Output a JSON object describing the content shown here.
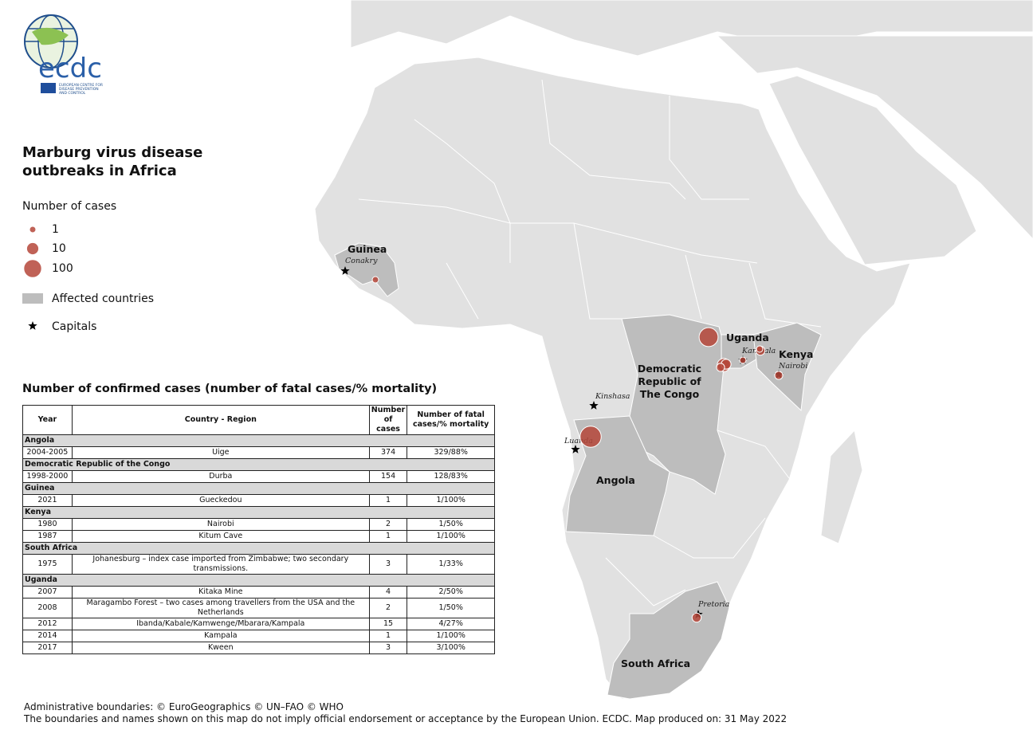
{
  "logo": {
    "text": "ecdc",
    "agency": [
      "EUROPEAN CENTRE FOR",
      "DISEASE PREVENTION",
      "AND CONTROL"
    ]
  },
  "title": [
    "Marburg virus disease",
    "outbreaks in Africa"
  ],
  "legend": {
    "title": "Number of cases",
    "sizes": [
      1,
      10,
      100
    ],
    "affected": "Affected countries",
    "capitals": "Capitals"
  },
  "countries": [
    "Guinea",
    "Uganda",
    "Kenya",
    "Democratic Republic of The Congo",
    "Angola",
    "South Africa"
  ],
  "capitals": [
    "Conakry",
    "Kampala",
    "Nairobi",
    "Kinshasa",
    "Luanda",
    "Pretoria"
  ],
  "table": {
    "title": "Number of confirmed cases (number of fatal cases/% mortality)",
    "headers": [
      "Year",
      "Country - Region",
      "Number of cases",
      "Number of fatal cases/% mortality"
    ],
    "groups": [
      {
        "country": "Angola",
        "rows": [
          {
            "year": "2004-2005",
            "region": "Uige",
            "cases": 374,
            "fatal": "329/88%"
          }
        ]
      },
      {
        "country": "Democratic Republic of the Congo",
        "rows": [
          {
            "year": "1998-2000",
            "region": "Durba",
            "cases": 154,
            "fatal": "128/83%"
          }
        ]
      },
      {
        "country": "Guinea",
        "rows": [
          {
            "year": "2021",
            "region": "Gueckedou",
            "cases": 1,
            "fatal": "1/100%"
          }
        ]
      },
      {
        "country": "Kenya",
        "rows": [
          {
            "year": "1980",
            "region": "Nairobi",
            "cases": 2,
            "fatal": "1/50%"
          },
          {
            "year": "1987",
            "region": "Kitum Cave",
            "cases": 1,
            "fatal": "1/100%"
          }
        ]
      },
      {
        "country": "South Africa",
        "rows": [
          {
            "year": "1975",
            "region": "Johanesburg – index case imported from Zimbabwe; two secondary transmissions.",
            "cases": 3,
            "fatal": "1/33%"
          }
        ]
      },
      {
        "country": "Uganda",
        "rows": [
          {
            "year": "2007",
            "region": "Kitaka Mine",
            "cases": 4,
            "fatal": "2/50%"
          },
          {
            "year": "2008",
            "region": "Maragambo Forest – two cases among travellers from the USA and the Netherlands",
            "cases": 2,
            "fatal": "1/50%"
          },
          {
            "year": "2012",
            "region": "Ibanda/Kabale/Kamwenge/Mbarara/Kampala",
            "cases": 15,
            "fatal": "4/27%"
          },
          {
            "year": "2014",
            "region": "Kampala",
            "cases": 1,
            "fatal": "1/100%"
          },
          {
            "year": "2017",
            "region": "Kween",
            "cases": 3,
            "fatal": "3/100%"
          }
        ]
      }
    ]
  },
  "footer": [
    "Administrative boundaries: © EuroGeographics © UN–FAO © WHO",
    "The boundaries and names shown on this map do not imply official endorsement or acceptance by the European Union. ECDC. Map produced on: 31 May 2022"
  ]
}
